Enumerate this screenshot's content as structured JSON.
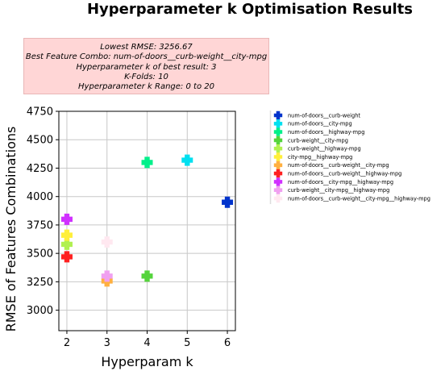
{
  "title": "Hyperparameter k Optimisation Results",
  "info_box": {
    "lines": [
      "Lowest RMSE: 3256.67",
      "Best Feature Combo: num-of-doors__curb-weight__city-mpg",
      "Hyperparameter k of best result: 3",
      "K-Folds: 10",
      "Hyperparameter k Range: 0 to 20"
    ],
    "color": "#ffd6d6"
  },
  "chart_data": {
    "type": "scatter",
    "title": "Hyperparameter k Optimisation Results",
    "xlabel": "Hyperparam k",
    "ylabel": "RMSE of Features Combinations",
    "xlim": [
      1.8,
      6.2
    ],
    "ylim": [
      2820,
      4750
    ],
    "xticks": [
      2,
      3,
      4,
      5,
      6
    ],
    "yticks": [
      3000,
      3250,
      3500,
      3750,
      4000,
      4250,
      4500,
      4750
    ],
    "grid": true,
    "legend": "right-outside",
    "marker": "plus",
    "series": [
      {
        "name": "num-of-doors__curb-weight",
        "color": "#0033cc",
        "x": [
          6
        ],
        "y": [
          3950
        ]
      },
      {
        "name": "num-of-doors__city-mpg",
        "color": "#00e0f0",
        "x": [
          5
        ],
        "y": [
          4320
        ]
      },
      {
        "name": "num-of-doors__highway-mpg",
        "color": "#00f08a",
        "x": [
          4
        ],
        "y": [
          4300
        ]
      },
      {
        "name": "curb-weight__city-mpg",
        "color": "#55d43c",
        "x": [
          4
        ],
        "y": [
          3300
        ]
      },
      {
        "name": "curb-weight__highway-mpg",
        "color": "#b0f050",
        "x": [
          2
        ],
        "y": [
          3580
        ]
      },
      {
        "name": "city-mpg__highway-mpg",
        "color": "#ffef3a",
        "x": [
          2
        ],
        "y": [
          3660
        ]
      },
      {
        "name": "num-of-doors__curb-weight__city-mpg",
        "color": "#ffb040",
        "x": [
          3
        ],
        "y": [
          3257
        ]
      },
      {
        "name": "num-of-doors__curb-weight__highway-mpg",
        "color": "#ff2020",
        "x": [
          2
        ],
        "y": [
          3470
        ]
      },
      {
        "name": "num-of-doors__city-mpg__highway-mpg",
        "color": "#d030ff",
        "x": [
          2
        ],
        "y": [
          3800
        ]
      },
      {
        "name": "curb-weight__city-mpg__highway-mpg",
        "color": "#f0a0f0",
        "x": [
          3
        ],
        "y": [
          3300
        ]
      },
      {
        "name": "num-of-doors__curb-weight__city-mpg__highway-mpg",
        "color": "#ffe8f0",
        "x": [
          3
        ],
        "y": [
          3600
        ]
      }
    ]
  }
}
